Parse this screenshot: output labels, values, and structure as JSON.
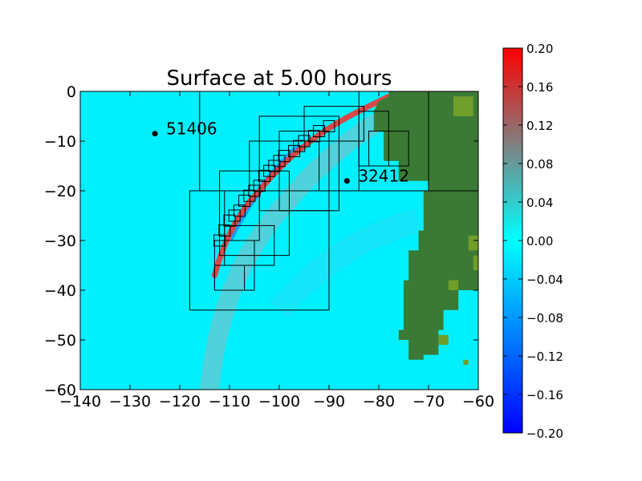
{
  "chart_data": {
    "type": "heatmap",
    "title": "Surface at 5.00 hours",
    "xlabel": "",
    "ylabel": "",
    "xlim": [
      -140,
      -60
    ],
    "ylim": [
      -60,
      0
    ],
    "x_ticks": [
      -140,
      -130,
      -120,
      -110,
      -100,
      -90,
      -80,
      -70,
      -60
    ],
    "y_ticks": [
      0,
      -10,
      -20,
      -30,
      -40,
      -50,
      -60
    ],
    "colorbar": {
      "range": [
        -0.2,
        0.2
      ],
      "ticks": [
        "0.20",
        "0.16",
        "0.12",
        "0.08",
        "0.04",
        "0.00",
        "−0.04",
        "−0.08",
        "−0.12",
        "−0.16",
        "−0.20"
      ],
      "colormap": [
        "#0000ff",
        "#00ffff",
        "#ff0000"
      ]
    },
    "gauges": [
      {
        "label": "51406",
        "x": -125.0,
        "y": -8.5
      },
      {
        "label": "32412",
        "x": -86.4,
        "y": -18.0
      }
    ],
    "colors": {
      "ocean": "#00f0ff",
      "land": "#3a7a35",
      "land_high": "#6f9e2a",
      "wave_front": "#d84848",
      "trough": "#1a60ff",
      "trailing_wave": "#8fb9bd"
    },
    "amr_patches": [
      [
        -116,
        -70,
        -20,
        0
      ],
      [
        -118,
        -90,
        -44,
        -20
      ],
      [
        -113,
        -105,
        -40,
        -30
      ],
      [
        -113,
        -107,
        -40,
        -35
      ],
      [
        -111,
        -101,
        -35,
        -27
      ],
      [
        -111,
        -104,
        -30,
        -20
      ],
      [
        -112,
        -98,
        -33,
        -16
      ],
      [
        -106,
        -92,
        -20,
        -10
      ],
      [
        -104,
        -88,
        -24,
        -5
      ],
      [
        -100,
        -90,
        -24,
        -8
      ],
      [
        -95,
        -83,
        -10,
        -3
      ],
      [
        -84,
        -70,
        -20,
        0
      ],
      [
        -84,
        -78,
        -15,
        -4
      ],
      [
        -82,
        -74,
        -15,
        -8
      ],
      [
        -70,
        -60,
        -20,
        0
      ]
    ],
    "fine_patches_wave": [
      [
        -112,
        -30
      ],
      [
        -111,
        -28
      ],
      [
        -110,
        -26
      ],
      [
        -109,
        -25
      ],
      [
        -108,
        -24
      ],
      [
        -107,
        -22
      ],
      [
        -106,
        -21
      ],
      [
        -105,
        -20
      ],
      [
        -104,
        -19
      ],
      [
        -103,
        -17
      ],
      [
        -102,
        -16
      ],
      [
        -101,
        -15
      ],
      [
        -100,
        -14
      ],
      [
        -99,
        -13
      ],
      [
        -97,
        -12
      ],
      [
        -96,
        -11
      ],
      [
        -95,
        -10
      ],
      [
        -93,
        -9
      ],
      [
        -92,
        -8
      ],
      [
        -90,
        -7
      ]
    ]
  }
}
